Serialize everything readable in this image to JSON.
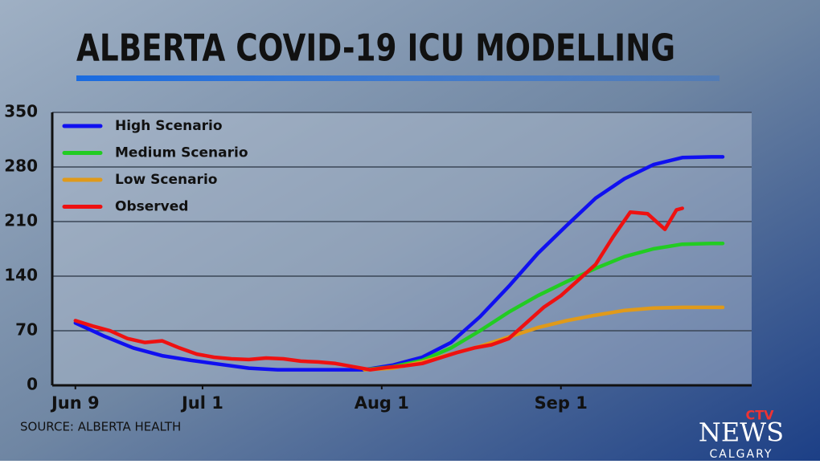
{
  "chart_data": {
    "type": "line",
    "title": "ALBERTA COVID-19 ICU MODELLING",
    "source": "SOURCE: ALBERTA HEALTH",
    "logo": {
      "brand": "CTV",
      "name": "NEWS",
      "city": "CALGARY"
    },
    "xlim": [
      -4,
      117
    ],
    "xticks": [
      {
        "value": 0,
        "label": "Jun 9"
      },
      {
        "value": 22,
        "label": "Jul 1"
      },
      {
        "value": 53,
        "label": "Aug 1"
      },
      {
        "value": 84,
        "label": "Sep 1"
      }
    ],
    "ylim": [
      0,
      350
    ],
    "yticks": [
      0,
      70,
      140,
      210,
      280,
      350
    ],
    "grid": true,
    "legend": "top-left",
    "series": [
      {
        "name": "High Scenario",
        "color": "#1010f0",
        "x": [
          0,
          5,
          10,
          15,
          20,
          25,
          30,
          35,
          40,
          45,
          50,
          55,
          60,
          65,
          70,
          75,
          80,
          85,
          90,
          95,
          100,
          105,
          110,
          112
        ],
        "values": [
          80,
          63,
          48,
          38,
          32,
          27,
          22,
          20,
          20,
          20,
          20,
          26,
          36,
          55,
          88,
          127,
          169,
          205,
          240,
          265,
          283,
          292,
          293,
          293
        ]
      },
      {
        "name": "Medium Scenario",
        "color": "#22cc22",
        "x": [
          50,
          55,
          60,
          65,
          70,
          75,
          80,
          85,
          90,
          95,
          100,
          105,
          110,
          112
        ],
        "values": [
          20,
          24,
          32,
          48,
          70,
          94,
          115,
          133,
          150,
          165,
          175,
          181,
          182,
          182
        ]
      },
      {
        "name": "Low Scenario",
        "color": "#e09a1a",
        "x": [
          50,
          55,
          60,
          65,
          70,
          75,
          80,
          85,
          90,
          95,
          100,
          105,
          110,
          112
        ],
        "values": [
          20,
          22,
          30,
          40,
          50,
          62,
          74,
          83,
          90,
          96,
          99,
          100,
          100,
          100
        ]
      },
      {
        "name": "Observed",
        "color": "#ee1111",
        "x": [
          0,
          3,
          6,
          9,
          12,
          15,
          18,
          21,
          24,
          27,
          30,
          33,
          36,
          39,
          42,
          45,
          48,
          51,
          54,
          57,
          60,
          63,
          66,
          69,
          72,
          75,
          78,
          81,
          84,
          87,
          90,
          93,
          96,
          99,
          102,
          104,
          105
        ],
        "values": [
          83,
          76,
          70,
          60,
          55,
          57,
          48,
          40,
          36,
          34,
          33,
          35,
          34,
          31,
          30,
          28,
          24,
          20,
          23,
          25,
          28,
          35,
          42,
          48,
          52,
          60,
          80,
          100,
          115,
          135,
          155,
          190,
          222,
          220,
          200,
          225,
          227
        ]
      }
    ]
  }
}
